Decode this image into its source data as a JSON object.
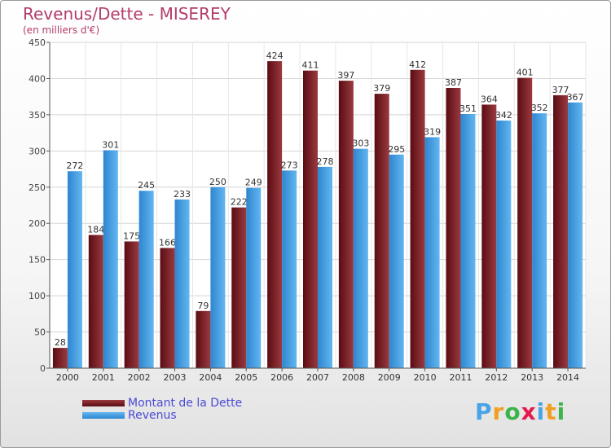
{
  "chart_data": {
    "type": "bar",
    "title": "Revenus/Dette - MISEREY",
    "subtitle": "(en milliers d'€)",
    "categories": [
      "2000",
      "2001",
      "2002",
      "2003",
      "2004",
      "2005",
      "2006",
      "2007",
      "2008",
      "2009",
      "2010",
      "2011",
      "2012",
      "2013",
      "2014"
    ],
    "series": [
      {
        "name": "Montant de la Dette",
        "color": "#7a1f24",
        "values": [
          28,
          184,
          175,
          166,
          79,
          222,
          424,
          411,
          397,
          379,
          412,
          387,
          364,
          401,
          377
        ]
      },
      {
        "name": "Revenus",
        "color": "#4aa3e6",
        "values": [
          272,
          301,
          245,
          233,
          250,
          249,
          273,
          278,
          303,
          295,
          319,
          351,
          342,
          352,
          367
        ]
      }
    ],
    "ylim": [
      0,
      450
    ],
    "yticks": [
      0,
      50,
      100,
      150,
      200,
      250,
      300,
      350,
      400,
      450
    ],
    "grid": true,
    "legend_position": "bottom-left"
  },
  "logo": {
    "letters": [
      "P",
      "r",
      "o",
      "x",
      "i",
      "t",
      "i"
    ],
    "colors": [
      "#4aa3e6",
      "#f0a020",
      "#3cb44b",
      "#e6194b",
      "#4aa3e6",
      "#f0a020",
      "#3cb44b"
    ]
  }
}
